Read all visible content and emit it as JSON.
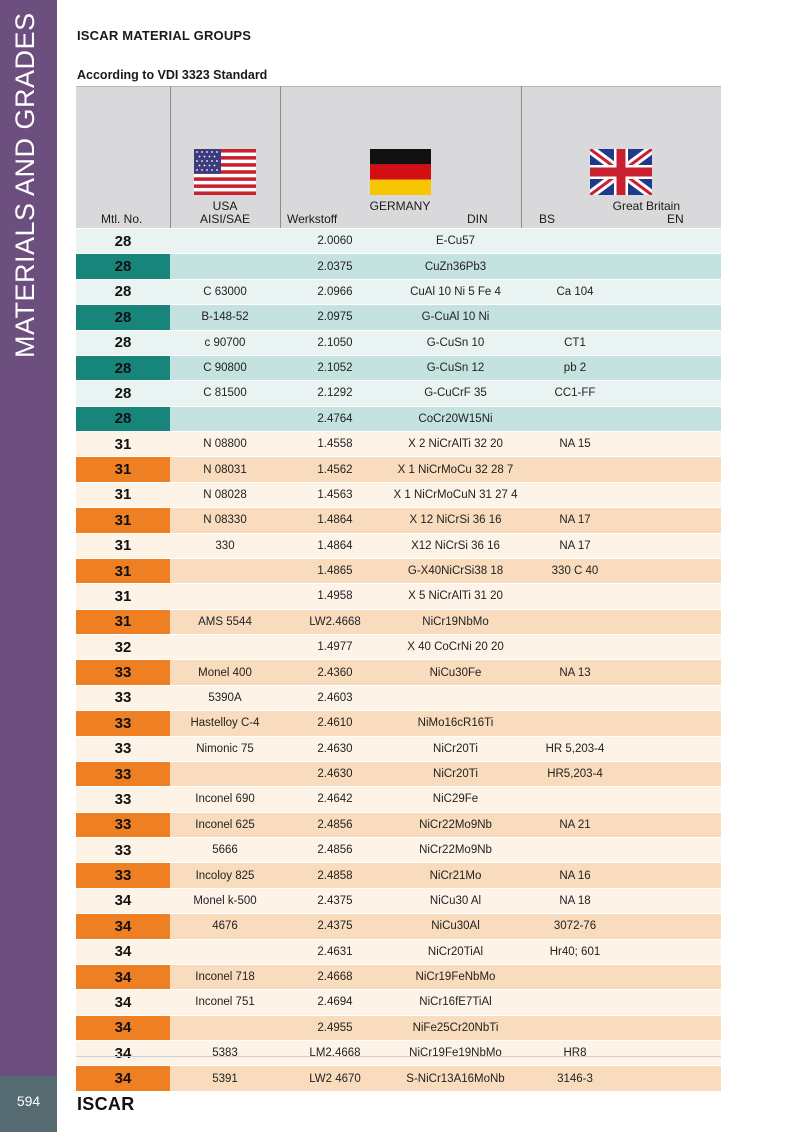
{
  "sidebar": {
    "title": "MATERIALS AND GRADES"
  },
  "page": {
    "title": "ISCAR MATERIAL GROUPS",
    "subtitle": "According to VDI 3323 Standard",
    "page_number": "594",
    "brand": "ISCAR"
  },
  "header": {
    "mtl_no": "Mtl. No.",
    "usa": "USA",
    "aisi_sae": "AISI/SAE",
    "werkstoff": "Werkstoff",
    "germany": "GERMANY",
    "din": "DIN",
    "bs": "BS",
    "great_britain": "Great Britain",
    "en": "EN"
  },
  "colors": {
    "sidebar": "#6c4e7f",
    "teal": "#17857a",
    "orange": "#ee7f22",
    "header_bg": "#d9d9db"
  },
  "rows": [
    {
      "mtl": "28",
      "aisi": "",
      "werkstoff": "2.0060",
      "din": "E-Cu57",
      "bs": "",
      "en": "",
      "style": "teal-light"
    },
    {
      "mtl": "28",
      "aisi": "",
      "werkstoff": "2.0375",
      "din": "CuZn36Pb3",
      "bs": "",
      "en": "",
      "style": "teal-dark"
    },
    {
      "mtl": "28",
      "aisi": "C 63000",
      "werkstoff": "2.0966",
      "din": "CuAl 10 Ni 5 Fe 4",
      "bs": "Ca 104",
      "en": "",
      "style": "teal-light"
    },
    {
      "mtl": "28",
      "aisi": "B-148-52",
      "werkstoff": "2.0975",
      "din": "G-CuAl 10 Ni",
      "bs": "",
      "en": "",
      "style": "teal-dark"
    },
    {
      "mtl": "28",
      "aisi": "c 90700",
      "werkstoff": "2.1050",
      "din": "G-CuSn 10",
      "bs": "CT1",
      "en": "",
      "style": "teal-light"
    },
    {
      "mtl": "28",
      "aisi": "C 90800",
      "werkstoff": "2.1052",
      "din": "G-CuSn 12",
      "bs": "pb 2",
      "en": "",
      "style": "teal-dark"
    },
    {
      "mtl": "28",
      "aisi": "C 81500",
      "werkstoff": "2.1292",
      "din": "G-CuCrF 35",
      "bs": "CC1-FF",
      "en": "",
      "style": "teal-light"
    },
    {
      "mtl": "28",
      "aisi": "",
      "werkstoff": "2.4764",
      "din": "CoCr20W15Ni",
      "bs": "",
      "en": "",
      "style": "teal-dark"
    },
    {
      "mtl": "31",
      "aisi": "N 08800",
      "werkstoff": "1.4558",
      "din": "X 2 NiCrAlTi 32 20",
      "bs": "NA 15",
      "en": "",
      "style": "orange-light"
    },
    {
      "mtl": "31",
      "aisi": "N 08031",
      "werkstoff": "1.4562",
      "din": "X 1 NiCrMoCu 32 28 7",
      "bs": "",
      "en": "",
      "style": "orange-dark"
    },
    {
      "mtl": "31",
      "aisi": "N 08028",
      "werkstoff": "1.4563",
      "din": "X 1 NiCrMoCuN 31 27 4",
      "bs": "",
      "en": "",
      "style": "orange-light"
    },
    {
      "mtl": "31",
      "aisi": "N 08330",
      "werkstoff": "1.4864",
      "din": "X 12 NiCrSi 36 16",
      "bs": "NA 17",
      "en": "",
      "style": "orange-dark"
    },
    {
      "mtl": "31",
      "aisi": "330",
      "werkstoff": "1.4864",
      "din": "X12 NiCrSi 36 16",
      "bs": "NA 17",
      "en": "",
      "style": "orange-light"
    },
    {
      "mtl": "31",
      "aisi": "",
      "werkstoff": "1.4865",
      "din": "G-X40NiCrSi38 18",
      "bs": "330 C 40",
      "en": "",
      "style": "orange-dark"
    },
    {
      "mtl": "31",
      "aisi": "",
      "werkstoff": "1.4958",
      "din": "X 5 NiCrAlTi 31 20",
      "bs": "",
      "en": "",
      "style": "orange-light"
    },
    {
      "mtl": "31",
      "aisi": "AMS 5544",
      "werkstoff": "LW2.4668",
      "din": "NiCr19NbMo",
      "bs": "",
      "en": "",
      "style": "orange-dark"
    },
    {
      "mtl": "32",
      "aisi": "",
      "werkstoff": "1.4977",
      "din": "X 40 CoCrNi 20 20",
      "bs": "",
      "en": "",
      "style": "orange-light"
    },
    {
      "mtl": "33",
      "aisi": "Monel 400",
      "werkstoff": "2.4360",
      "din": "NiCu30Fe",
      "bs": "NA 13",
      "en": "",
      "style": "orange-dark"
    },
    {
      "mtl": "33",
      "aisi": "5390A",
      "werkstoff": "2.4603",
      "din": "",
      "bs": "",
      "en": "",
      "style": "orange-light"
    },
    {
      "mtl": "33",
      "aisi": "Hastelloy C-4",
      "werkstoff": "2.4610",
      "din": "NiMo16cR16Ti",
      "bs": "",
      "en": "",
      "style": "orange-dark"
    },
    {
      "mtl": "33",
      "aisi": "Nimonic 75",
      "werkstoff": "2.4630",
      "din": "NiCr20Ti",
      "bs": "HR 5,203-4",
      "en": "",
      "style": "orange-light"
    },
    {
      "mtl": "33",
      "aisi": "",
      "werkstoff": "2.4630",
      "din": "NiCr20Ti",
      "bs": "HR5,203-4",
      "en": "",
      "style": "orange-dark"
    },
    {
      "mtl": "33",
      "aisi": "Inconel 690",
      "werkstoff": "2.4642",
      "din": "NiC29Fe",
      "bs": "",
      "en": "",
      "style": "orange-light"
    },
    {
      "mtl": "33",
      "aisi": "Inconel 625",
      "werkstoff": "2.4856",
      "din": "NiCr22Mo9Nb",
      "bs": "NA 21",
      "en": "",
      "style": "orange-dark"
    },
    {
      "mtl": "33",
      "aisi": "5666",
      "werkstoff": "2.4856",
      "din": "NiCr22Mo9Nb",
      "bs": "",
      "en": "",
      "style": "orange-light"
    },
    {
      "mtl": "33",
      "aisi": "Incoloy 825",
      "werkstoff": "2.4858",
      "din": "NiCr21Mo",
      "bs": "NA 16",
      "en": "",
      "style": "orange-dark"
    },
    {
      "mtl": "34",
      "aisi": "Monel k-500",
      "werkstoff": "2.4375",
      "din": "NiCu30 Al",
      "bs": "NA 18",
      "en": "",
      "style": "orange-light"
    },
    {
      "mtl": "34",
      "aisi": "4676",
      "werkstoff": "2.4375",
      "din": "NiCu30Al",
      "bs": "3072-76",
      "en": "",
      "style": "orange-dark"
    },
    {
      "mtl": "34",
      "aisi": "",
      "werkstoff": "2.4631",
      "din": "NiCr20TiAl",
      "bs": "Hr40; 601",
      "en": "",
      "style": "orange-light"
    },
    {
      "mtl": "34",
      "aisi": "Inconel 718",
      "werkstoff": "2.4668",
      "din": "NiCr19FeNbMo",
      "bs": "",
      "en": "",
      "style": "orange-dark"
    },
    {
      "mtl": "34",
      "aisi": "Inconel 751",
      "werkstoff": "2.4694",
      "din": "NiCr16fE7TiAl",
      "bs": "",
      "en": "",
      "style": "orange-light"
    },
    {
      "mtl": "34",
      "aisi": "",
      "werkstoff": "2.4955",
      "din": "NiFe25Cr20NbTi",
      "bs": "",
      "en": "",
      "style": "orange-dark"
    },
    {
      "mtl": "34",
      "aisi": "5383",
      "werkstoff": "LM2.4668",
      "din": "NiCr19Fe19NbMo",
      "bs": "HR8",
      "en": "",
      "style": "orange-light"
    },
    {
      "mtl": "34",
      "aisi": "5391",
      "werkstoff": "LW2 4670",
      "din": "S-NiCr13A16MoNb",
      "bs": "3146-3",
      "en": "",
      "style": "orange-dark"
    }
  ]
}
